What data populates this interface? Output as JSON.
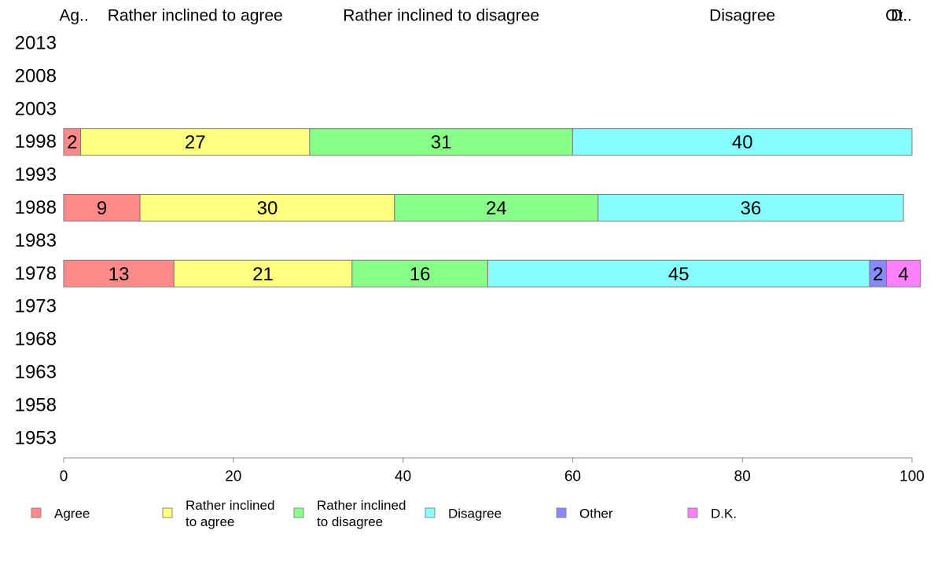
{
  "chart_data": {
    "type": "bar",
    "orientation": "horizontal",
    "stacked": true,
    "categories": [
      "1953",
      "1958",
      "1963",
      "1968",
      "1973",
      "1978",
      "1983",
      "1988",
      "1993",
      "1998",
      "2003",
      "2008",
      "2013"
    ],
    "series": [
      {
        "name": "Agree",
        "color": "#ff8a8a",
        "values": [
          null,
          null,
          null,
          null,
          null,
          13,
          null,
          9,
          null,
          2,
          null,
          null,
          null
        ]
      },
      {
        "name": "Rather inclined to agree",
        "color": "#ffff80",
        "values": [
          null,
          null,
          null,
          null,
          null,
          21,
          null,
          30,
          null,
          27,
          null,
          null,
          null
        ]
      },
      {
        "name": "Rather inclined to disagree",
        "color": "#88ff88",
        "values": [
          null,
          null,
          null,
          null,
          null,
          16,
          null,
          24,
          null,
          31,
          null,
          null,
          null
        ]
      },
      {
        "name": "Disagree",
        "color": "#88ffff",
        "values": [
          null,
          null,
          null,
          null,
          null,
          45,
          null,
          36,
          null,
          40,
          null,
          null,
          null
        ]
      },
      {
        "name": "Other",
        "color": "#8888ff",
        "values": [
          null,
          null,
          null,
          null,
          null,
          2,
          null,
          0,
          null,
          0,
          null,
          null,
          null
        ]
      },
      {
        "name": "D.K.",
        "color": "#ff80ff",
        "values": [
          null,
          null,
          null,
          null,
          null,
          4,
          null,
          0,
          null,
          0,
          null,
          null,
          null
        ]
      }
    ],
    "xlim": [
      0,
      100
    ],
    "xticks": [
      "0",
      "20",
      "40",
      "60",
      "80",
      "100"
    ],
    "top_labels": [
      "Ag..",
      "Rather inclined to agree",
      "Rather inclined to disagree",
      "Disagree",
      "Ot..",
      "D.."
    ],
    "legend": {
      "position": "bottom",
      "items": [
        {
          "lines": [
            "Agree"
          ],
          "color": "#ff8a8a"
        },
        {
          "lines": [
            "Rather inclined",
            "to agree"
          ],
          "color": "#ffff80"
        },
        {
          "lines": [
            "Rather inclined",
            "to disagree"
          ],
          "color": "#88ff88"
        },
        {
          "lines": [
            "Disagree"
          ],
          "color": "#88ffff"
        },
        {
          "lines": [
            "Other"
          ],
          "color": "#8888ff"
        },
        {
          "lines": [
            "D.K."
          ],
          "color": "#ff80ff"
        }
      ]
    },
    "grid": false
  }
}
